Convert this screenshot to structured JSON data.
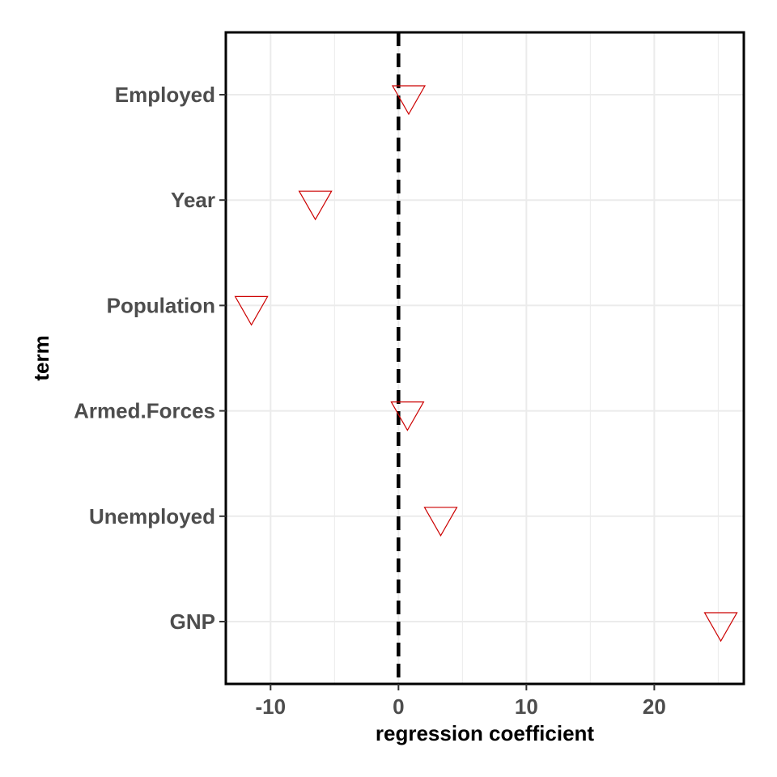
{
  "chart_data": {
    "type": "scatter",
    "title": "",
    "xlabel": "regression coefficient",
    "ylabel": "term",
    "xlim": [
      -13.5,
      27
    ],
    "x_ticks": [
      -10,
      0,
      10,
      20
    ],
    "x_tick_labels": [
      "-10",
      "0",
      "10",
      "20"
    ],
    "grid": true,
    "reference_line": {
      "x": 0,
      "style": "dashed"
    },
    "marker": "triangle-down-open",
    "colors": {
      "marker": "#cc0000",
      "reference_line": "#000000",
      "grid": "#ebebeb",
      "panel_border": "#000000",
      "tick_label": "#4d4d4d"
    },
    "terms": [
      "Employed",
      "Year",
      "Population",
      "Armed.Forces",
      "Unemployed",
      "GNP"
    ],
    "values": [
      0.8,
      -6.5,
      -11.5,
      0.7,
      3.3,
      25.2
    ]
  }
}
